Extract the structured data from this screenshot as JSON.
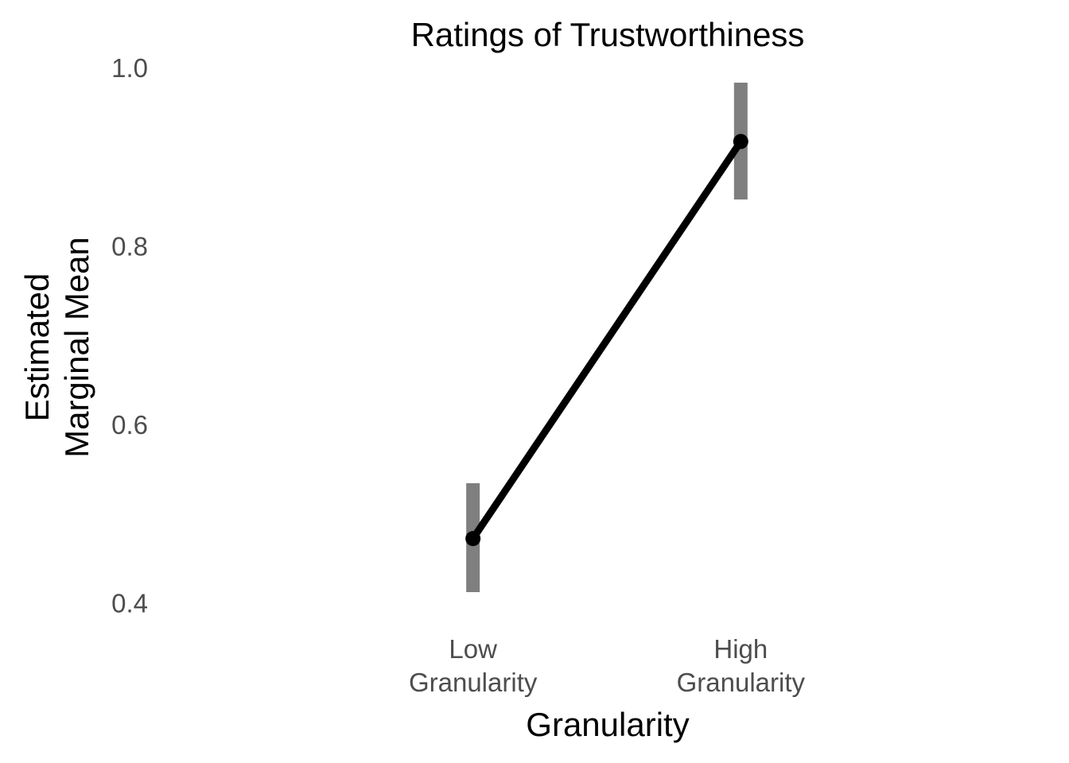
{
  "chart_data": {
    "type": "line",
    "title": "Ratings of Trustworthiness",
    "xlabel": "Granularity",
    "ylabel_lines": [
      "Estimated",
      "Marginal Mean"
    ],
    "categories": [
      {
        "lines": [
          "Low",
          "Granularity"
        ]
      },
      {
        "lines": [
          "High",
          "Granularity"
        ]
      }
    ],
    "series": [
      {
        "values": [
          0.473,
          0.918
        ],
        "ci_lower": [
          0.413,
          0.853
        ],
        "ci_upper": [
          0.535,
          0.984
        ]
      }
    ],
    "ylim": [
      0.38,
      1.0
    ],
    "yticks": [
      {
        "value": 0.4,
        "label": "0.4"
      },
      {
        "value": 0.6,
        "label": "0.6"
      },
      {
        "value": 0.8,
        "label": "0.8"
      },
      {
        "value": 1.0,
        "label": "1.0"
      }
    ],
    "grid": false,
    "legend": "none",
    "colors": {
      "line": "#000000",
      "point": "#000000",
      "errorbar": "#7f7f7f",
      "tick_text": "#4d4d4d"
    }
  }
}
